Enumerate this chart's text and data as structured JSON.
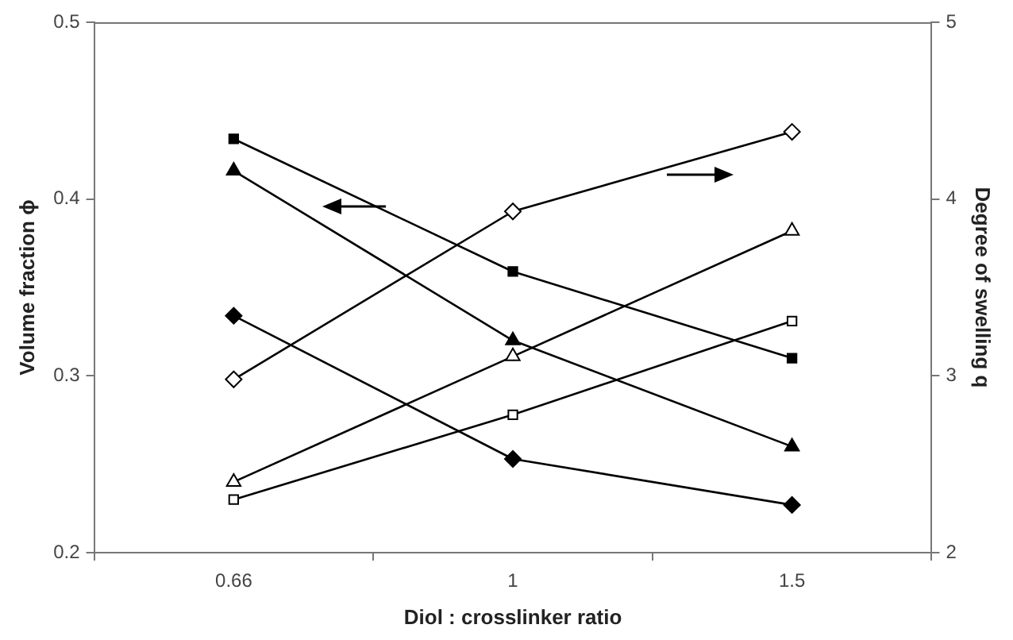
{
  "chart_data": {
    "type": "line",
    "xlabel": "Diol : crosslinker ratio",
    "ylabel": "Volume fraction ϕ",
    "y2label": "Degree of swelling q",
    "categories": [
      "0.66",
      "1",
      "1.5"
    ],
    "ylim": [
      0.2,
      0.5
    ],
    "yticks": [
      0.2,
      0.3,
      0.4,
      0.5
    ],
    "y2lim": [
      2,
      5
    ],
    "y2ticks": [
      2,
      3,
      4,
      5
    ],
    "grid": false,
    "legend": false,
    "line_style": "solid",
    "series": [
      {
        "color": "#000000",
        "marker": "square",
        "values": [
          0.434,
          0.359,
          0.31
        ]
      },
      {
        "color": "#000000",
        "marker": "triangle",
        "values": [
          0.416,
          0.32,
          0.26
        ]
      },
      {
        "color": "#000000",
        "marker": "diamond",
        "values": [
          0.334,
          0.253,
          0.227
        ]
      },
      {
        "color": "#000000",
        "marker": "diamond",
        "axis": "y2",
        "values": [
          2.98,
          3.93,
          4.38
        ]
      },
      {
        "color": "#000000",
        "marker": "triangle",
        "axis": "y2",
        "values": [
          2.4,
          3.11,
          3.82
        ]
      },
      {
        "color": "#000000",
        "marker": "square",
        "axis": "y2",
        "values": [
          2.3,
          2.78,
          3.31
        ]
      }
    ]
  }
}
